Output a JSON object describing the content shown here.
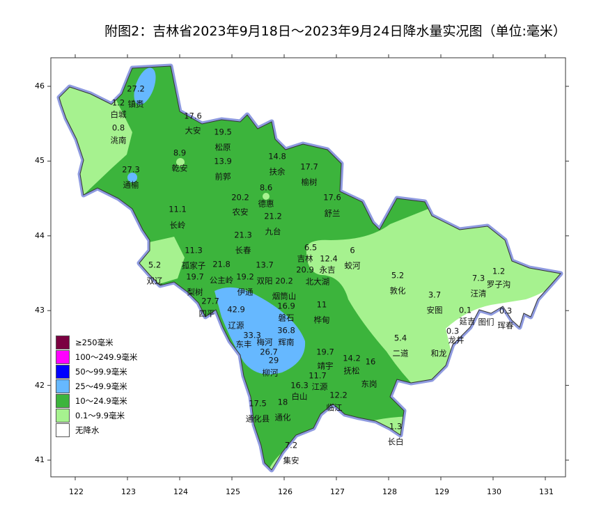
{
  "title": "附图2：吉林省2023年9月18日～2023年9月24日降水量实况图（单位:毫米）",
  "axes": {
    "lon_ticks": [
      "122",
      "123",
      "124",
      "125",
      "126",
      "127",
      "128",
      "129",
      "130",
      "131"
    ],
    "lat_ticks": [
      "46",
      "45",
      "44",
      "43",
      "42",
      "41"
    ]
  },
  "legend": [
    {
      "label": "≥250毫米",
      "color": "#7b0041"
    },
    {
      "label": "100～249.9毫米",
      "color": "#ff00ff"
    },
    {
      "label": "50～99.9毫米",
      "color": "#0000ff"
    },
    {
      "label": "25～49.9毫米",
      "color": "#66b8ff"
    },
    {
      "label": "10～24.9毫米",
      "color": "#3cb43c"
    },
    {
      "label": "0.1～9.9毫米",
      "color": "#a6f28f"
    },
    {
      "label": "无降水",
      "color": "#ffffff"
    }
  ],
  "colors": {
    "outline": "#8f9be0",
    "border": "#333333"
  },
  "stations": [
    {
      "name": "镇赉",
      "value": "27.2"
    },
    {
      "name": "白城",
      "value": "1.2"
    },
    {
      "name": "洮南",
      "value": "0.8"
    },
    {
      "name": "大安",
      "value": "17.6"
    },
    {
      "name": "松原",
      "value": "19.5"
    },
    {
      "name": "乾安",
      "value": "8.9"
    },
    {
      "name": "前郭",
      "value": "13.9"
    },
    {
      "name": "扶余",
      "value": "14.8"
    },
    {
      "name": "榆树",
      "value": "17.7"
    },
    {
      "name": "通榆",
      "value": "27.3"
    },
    {
      "name": "德惠",
      "value": "8.6"
    },
    {
      "name": "农安",
      "value": "20.2"
    },
    {
      "name": "舒兰",
      "value": "17.6"
    },
    {
      "name": "九台",
      "value": "21.2"
    },
    {
      "name": "长岭",
      "value": "11.1"
    },
    {
      "name": "长春",
      "value": "21.3"
    },
    {
      "name": "孤家子",
      "value": "11.3"
    },
    {
      "name": "双辽",
      "value": "5.2"
    },
    {
      "name": "公主岭",
      "value": "21.8"
    },
    {
      "name": "梨树",
      "value": "19.7"
    },
    {
      "name": "伊通",
      "value": "19.2"
    },
    {
      "name": "双阳",
      "value": "13.7"
    },
    {
      "name": "烟筒山",
      "value": "20.2"
    },
    {
      "name": "四平",
      "value": "27.7"
    },
    {
      "name": "吉林",
      "value": "6.5"
    },
    {
      "name": "",
      "value": "12.4"
    },
    {
      "name": "永吉",
      "value": "20.9"
    },
    {
      "name": "北大湖",
      "value": ""
    },
    {
      "name": "蛟河",
      "value": "6"
    },
    {
      "name": "磐石",
      "value": "16.9"
    },
    {
      "name": "桦甸",
      "value": "11"
    },
    {
      "name": "辽源",
      "value": "42.9"
    },
    {
      "name": "东丰",
      "value": "33.3"
    },
    {
      "name": "辉南",
      "value": "36.8"
    },
    {
      "name": "梅河",
      "value": "26.7"
    },
    {
      "name": "柳河",
      "value": "29"
    },
    {
      "name": "靖宇",
      "value": "19.7"
    },
    {
      "name": "抚松",
      "value": "14.2"
    },
    {
      "name": "东岗",
      "value": "16"
    },
    {
      "name": "江源",
      "value": "11.7"
    },
    {
      "name": "白山",
      "value": "16.3"
    },
    {
      "name": "临江",
      "value": "12.2"
    },
    {
      "name": "通化县",
      "value": "17.5"
    },
    {
      "name": "通化",
      "value": "18"
    },
    {
      "name": "集安",
      "value": "7.2"
    },
    {
      "name": "长白",
      "value": "1.3"
    },
    {
      "name": "敦化",
      "value": "5.2"
    },
    {
      "name": "安图",
      "value": "3.7"
    },
    {
      "name": "二道",
      "value": "5.4"
    },
    {
      "name": "和龙",
      "value": ""
    },
    {
      "name": "汪清",
      "value": "7.3"
    },
    {
      "name": "罗子沟",
      "value": "1.2"
    },
    {
      "name": "延吉",
      "value": "0.1"
    },
    {
      "name": "龙井",
      "value": "0.3"
    },
    {
      "name": "图们",
      "value": ""
    },
    {
      "name": "珲春",
      "value": "0.3"
    }
  ]
}
